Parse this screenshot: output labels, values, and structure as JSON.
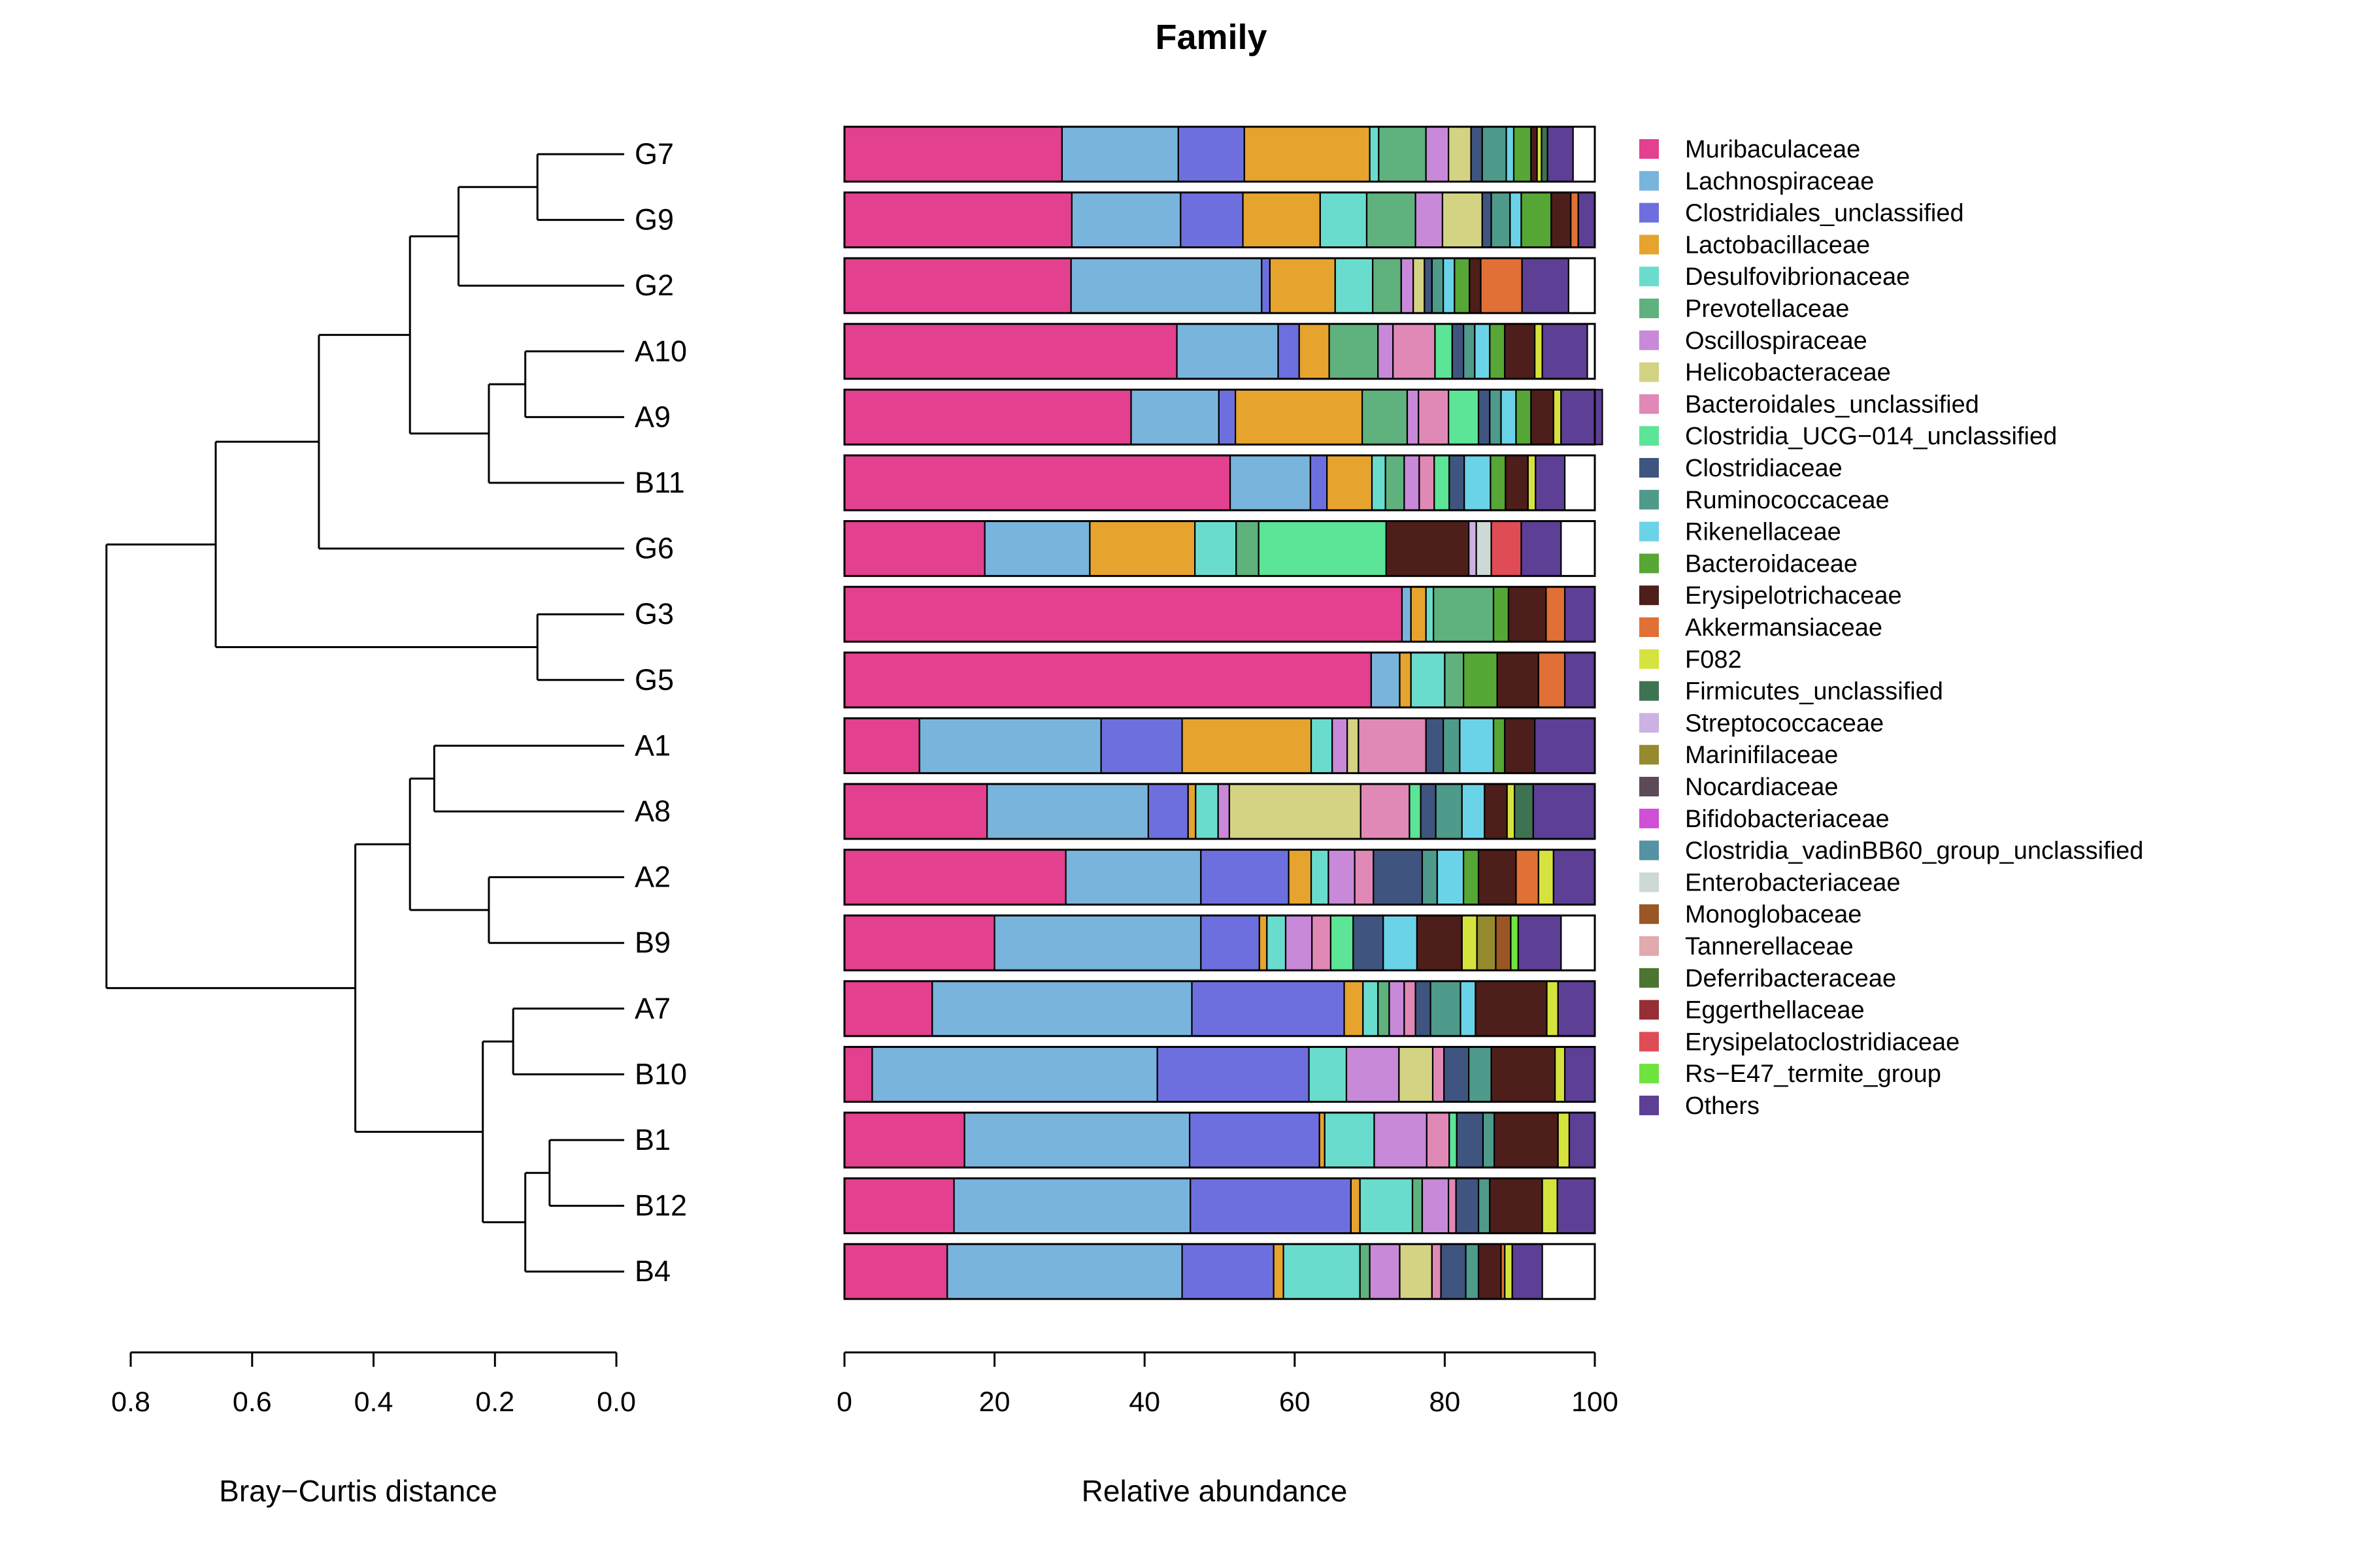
{
  "chart_data": {
    "type": "bar",
    "orientation": "horizontal",
    "stacked": true,
    "title": "Family",
    "xlabel": "Relative abundance",
    "xlim": [
      0,
      100
    ],
    "x_ticks": [
      "0",
      "20",
      "40",
      "60",
      "80",
      "100"
    ],
    "dendrogram": {
      "xlabel": "Bray−Curtis distance",
      "xlim": [
        0.8,
        0.0
      ],
      "x_ticks": [
        "0.8",
        "0.6",
        "0.4",
        "0.2",
        "0.0"
      ],
      "merges": [
        {
          "a": "G7",
          "b": "G9",
          "height": 0.13
        },
        {
          "a": "A10",
          "b": "A9",
          "height": 0.15
        },
        {
          "a": "G3",
          "b": "G5",
          "height": 0.13
        },
        {
          "a": "A1",
          "b": "A8",
          "height": 0.3
        },
        {
          "a": "A2",
          "b": "B9",
          "height": 0.21
        },
        {
          "a": "A7",
          "b": "B10",
          "height": 0.17
        },
        {
          "a": "B1",
          "b": "B12",
          "height": 0.11
        },
        {
          "a": "B1|B12",
          "b": "B4",
          "height": 0.15
        },
        {
          "a": "G7|G9",
          "b": "G2",
          "height": 0.26
        },
        {
          "a": "A10|A9",
          "b": "B11",
          "height": 0.21
        },
        {
          "a": "G7|G9|G2",
          "b": "A10|A9|B11",
          "height": 0.34
        },
        {
          "a": "G7|G9|G2|A10|A9|B11",
          "b": "G6",
          "height": 0.49
        },
        {
          "a": "G7|G9|G2|A10|A9|B11|G6",
          "b": "G3|G5",
          "height": 0.66
        },
        {
          "a": "A1|A8",
          "b": "A2|B9",
          "height": 0.34
        },
        {
          "a": "A7|B10",
          "b": "B1|B12|B4",
          "height": 0.22
        },
        {
          "a": "A1|A8|A2|B9",
          "b": "A7|B10|B1|B12|B4",
          "height": 0.43
        },
        {
          "a": "G7|G9|G2|A10|A9|B11|G6|G3|G5",
          "b": "A1|A8|A2|B9|A7|B10|B1|B12|B4",
          "height": 0.84
        }
      ]
    },
    "legend": [
      {
        "name": "Muribaculaceae",
        "color": "#E3408F"
      },
      {
        "name": "Lachnospiraceae",
        "color": "#79B4DC"
      },
      {
        "name": "Clostridiales_unclassified",
        "color": "#6E6FDE"
      },
      {
        "name": "Lactobacillaceae",
        "color": "#E6A42E"
      },
      {
        "name": "Desulfovibrionaceae",
        "color": "#6ADCCD"
      },
      {
        "name": "Prevotellaceae",
        "color": "#5FB27D"
      },
      {
        "name": "Oscillospiraceae",
        "color": "#C889D9"
      },
      {
        "name": "Helicobacteraceae",
        "color": "#D3D383"
      },
      {
        "name": "Bacteroidales_unclassified",
        "color": "#E089B6"
      },
      {
        "name": "Clostridia_UCG−014_unclassified",
        "color": "#5CE497"
      },
      {
        "name": "Clostridiaceae",
        "color": "#3F5580"
      },
      {
        "name": "Ruminococcaceae",
        "color": "#4E9A8B"
      },
      {
        "name": "Rikenellaceae",
        "color": "#6BD3E8"
      },
      {
        "name": "Bacteroidaceae",
        "color": "#56A735"
      },
      {
        "name": "Erysipelotrichaceae",
        "color": "#4E1E1A"
      },
      {
        "name": "Akkermansiaceae",
        "color": "#E07035"
      },
      {
        "name": "F082",
        "color": "#D6E33E"
      },
      {
        "name": "Firmicutes_unclassified",
        "color": "#3E7352"
      },
      {
        "name": "Streptococcaceae",
        "color": "#CDB1E2"
      },
      {
        "name": "Marinifilaceae",
        "color": "#958A2E"
      },
      {
        "name": "Nocardiaceae",
        "color": "#5C4A58"
      },
      {
        "name": "Bifidobacteriaceae",
        "color": "#CF4FD6"
      },
      {
        "name": "Clostridia_vadinBB60_group_unclassified",
        "color": "#5592A3"
      },
      {
        "name": "Enterobacteriaceae",
        "color": "#CDD9D5"
      },
      {
        "name": "Monoglobaceae",
        "color": "#9A5624"
      },
      {
        "name": "Tannerellaceae",
        "color": "#E2A9AF"
      },
      {
        "name": "Deferribacteraceae",
        "color": "#4B7530"
      },
      {
        "name": "Eggerthellaceae",
        "color": "#962E35"
      },
      {
        "name": "Erysipelatoclostridiaceae",
        "color": "#DF4C56"
      },
      {
        "name": "Rs−E47_termite_group",
        "color": "#6FE33E"
      },
      {
        "name": "Others",
        "color": "#5E3F96"
      }
    ],
    "samples": [
      {
        "name": "G7",
        "values": {
          "Muribaculaceae": 29,
          "Lachnospiraceae": 15.5,
          "Clostridiales_unclassified": 8.8,
          "Lactobacillaceae": 16.7,
          "Desulfovibrionaceae": 1.2,
          "Prevotellaceae": 6.3,
          "Oscillospiraceae": 3,
          "Helicobacteraceae": 3,
          "Rikenellaceae": 1,
          "Clostridiaceae": 1.5,
          "Ruminococcaceae": 3.2,
          "Bacteroidaceae": 2.3,
          "F082": 0.6,
          "Firmicutes_unclassified": 0.8,
          "Erysipelotrichaceae": 0.8,
          "Others": 3.4
        }
      },
      {
        "name": "G9",
        "values": {
          "Muribaculaceae": 30.3,
          "Lachnospiraceae": 14.5,
          "Clostridiales_unclassified": 8.3,
          "Lactobacillaceae": 10.3,
          "Desulfovibrionaceae": 6.2,
          "Prevotellaceae": 6.5,
          "Oscillospiraceae": 3.6,
          "Helicobacteraceae": 5.3,
          "Clostridiaceae": 1.2,
          "Ruminococcaceae": 2.5,
          "Rikenellaceae": 1.5,
          "Bacteroidaceae": 4,
          "Akkermansiaceae": 1,
          "Erysipelotrichaceae": 2.6,
          "Others": 2.2
        }
      },
      {
        "name": "G2",
        "values": {
          "Muribaculaceae": 30.2,
          "Lachnospiraceae": 25.4,
          "Clostridiales_unclassified": 1.1,
          "Lactobacillaceae": 8.7,
          "Desulfovibrionaceae": 5,
          "Prevotellaceae": 3.8,
          "Oscillospiraceae": 1.6,
          "Helicobacteraceae": 1.5,
          "Rikenellaceae": 1.5,
          "Clostridiaceae": 1,
          "Ruminococcaceae": 1.5,
          "Erysipelotrichaceae": 1.5,
          "Akkermansiaceae": 5.5,
          "Bacteroidaceae": 2,
          "Others": 6.2
        }
      },
      {
        "name": "A10",
        "values": {
          "Muribaculaceae": 44.3,
          "Lachnospiraceae": 13.5,
          "Clostridiales_unclassified": 2.8,
          "Lactobacillaceae": 4,
          "Prevotellaceae": 6.5,
          "Oscillospiraceae": 2,
          "Bacteroidales_unclassified": 5.6,
          "Clostridia_UCG−014_unclassified": 2.3,
          "Clostridiaceae": 1.5,
          "Ruminococcaceae": 1.5,
          "Rikenellaceae": 2,
          "Bacteroidaceae": 2,
          "F082": 1,
          "Erysipelotrichaceae": 4,
          "Others": 6
        }
      },
      {
        "name": "A9",
        "values": {
          "Muribaculaceae": 38.2,
          "Lachnospiraceae": 11.7,
          "Clostridiales_unclassified": 2.2,
          "Lactobacillaceae": 16.9,
          "Prevotellaceae": 6,
          "Oscillospiraceae": 1.5,
          "Bacteroidales_unclassified": 4,
          "Clostridia_UCG−014_unclassified": 4,
          "Clostridiaceae": 1.5,
          "Ruminococcaceae": 1.5,
          "Rikenellaceae": 2,
          "Bacteroidaceae": 2,
          "F082": 1,
          "Erysipelotrichaceae": 3,
          "Others": 5.5
        }
      },
      {
        "name": "B11",
        "values": {
          "Muribaculaceae": 51.4,
          "Lachnospiraceae": 10.7,
          "Clostridiales_unclassified": 2.2,
          "Lactobacillaceae": 6,
          "Desulfovibrionaceae": 1.8,
          "Prevotellaceae": 2.5,
          "Oscillospiraceae": 2,
          "Bacteroidales_unclassified": 2,
          "Clostridia_UCG−014_unclassified": 2,
          "Clostridiaceae": 2,
          "Rikenellaceae": 3.5,
          "Bacteroidaceae": 2,
          "F082": 1,
          "Erysipelotrichaceae": 3,
          "Others": 3.9
        }
      },
      {
        "name": "G6",
        "values": {
          "Muribaculaceae": 18.7,
          "Lachnospiraceae": 14,
          "Lactobacillaceae": 14,
          "Desulfovibrionaceae": 5.5,
          "Clostridia_UCG−014_unclassified": 17,
          "Prevotellaceae": 3,
          "Erysipelotrichaceae": 11,
          "Enterobacteriaceae": 2,
          "Streptococcaceae": 1,
          "Erysipelatoclostridiaceae": 4,
          "Others": 5.3
        }
      },
      {
        "name": "G3",
        "values": {
          "Muribaculaceae": 74.3,
          "Lachnospiraceae": 1.2,
          "Lactobacillaceae": 2,
          "Desulfovibrionaceae": 1,
          "Prevotellaceae": 8,
          "Bacteroidaceae": 2,
          "Akkermansiaceae": 2.5,
          "Erysipelotrichaceae": 5,
          "Others": 4
        }
      },
      {
        "name": "G5",
        "values": {
          "Muribaculaceae": 70.2,
          "Lachnospiraceae": 3.8,
          "Lactobacillaceae": 1.5,
          "Desulfovibrionaceae": 4.5,
          "Prevotellaceae": 2.5,
          "Bacteroidaceae": 4.5,
          "Akkermansiaceae": 3.5,
          "Erysipelotrichaceae": 5.5,
          "Others": 4
        }
      },
      {
        "name": "A1",
        "values": {
          "Muribaculaceae": 10,
          "Lachnospiraceae": 24.2,
          "Clostridiales_unclassified": 10.8,
          "Lactobacillaceae": 17.2,
          "Desulfovibrionaceae": 2.8,
          "Oscillospiraceae": 2,
          "Helicobacteraceae": 1.5,
          "Bacteroidales_unclassified": 9,
          "Clostridiaceae": 2.3,
          "Ruminococcaceae": 2.2,
          "Rikenellaceae": 4.5,
          "Bacteroidaceae": 1.5,
          "Erysipelotrichaceae": 4,
          "Others": 8
        }
      },
      {
        "name": "A8",
        "values": {
          "Muribaculaceae": 19,
          "Lachnospiraceae": 21.5,
          "Clostridiales_unclassified": 5.3,
          "Lactobacillaceae": 1,
          "Desulfovibrionaceae": 3,
          "Oscillospiraceae": 1.5,
          "Helicobacteraceae": 17.5,
          "Bacteroidales_unclassified": 6.5,
          "Clostridia_UCG−014_unclassified": 1.5,
          "Clostridiaceae": 2,
          "Ruminococcaceae": 3.5,
          "Rikenellaceae": 3,
          "F082": 1,
          "Firmicutes_unclassified": 2.5,
          "Erysipelotrichaceae": 3,
          "Others": 8.2
        }
      },
      {
        "name": "A2",
        "values": {
          "Muribaculaceae": 29.5,
          "Lachnospiraceae": 18,
          "Clostridiales_unclassified": 11.7,
          "Lactobacillaceae": 3,
          "Desulfovibrionaceae": 2.3,
          "Oscillospiraceae": 3.5,
          "Bacteroidales_unclassified": 2.5,
          "Clostridiaceae": 6.5,
          "Ruminococcaceae": 2,
          "Rikenellaceae": 3.5,
          "Bacteroidaceae": 2,
          "F082": 2,
          "Akkermansiaceae": 3,
          "Erysipelotrichaceae": 5,
          "Others": 5.5
        }
      },
      {
        "name": "B9",
        "values": {
          "Muribaculaceae": 20,
          "Lachnospiraceae": 27.5,
          "Clostridiales_unclassified": 7.8,
          "Lactobacillaceae": 1,
          "Desulfovibrionaceae": 2.5,
          "Oscillospiraceae": 3.5,
          "Bacteroidales_unclassified": 2.5,
          "Clostridia_UCG−014_unclassified": 3,
          "Clostridiaceae": 4,
          "Rikenellaceae": 4.5,
          "F082": 2,
          "Marinifilaceae": 2.5,
          "Monoglobaceae": 2,
          "Rs−E47_termite_group": 1,
          "Erysipelotrichaceae": 6,
          "Others": 5.7
        }
      },
      {
        "name": "A7",
        "values": {
          "Muribaculaceae": 11.7,
          "Lachnospiraceae": 34.6,
          "Clostridiales_unclassified": 20.3,
          "Lactobacillaceae": 2.5,
          "Desulfovibrionaceae": 2,
          "Prevotellaceae": 1.5,
          "Oscillospiraceae": 2,
          "Bacteroidales_unclassified": 1.5,
          "Clostridiaceae": 2,
          "Ruminococcaceae": 4,
          "Rikenellaceae": 2,
          "F082": 1.5,
          "Erysipelotrichaceae": 9.5,
          "Others": 4.9
        }
      },
      {
        "name": "B10",
        "values": {
          "Muribaculaceae": 3.7,
          "Lachnospiraceae": 38,
          "Clostridiales_unclassified": 20.2,
          "Desulfovibrionaceae": 5,
          "Oscillospiraceae": 7,
          "Helicobacteraceae": 4.5,
          "Bacteroidales_unclassified": 1.5,
          "Clostridiaceae": 3.3,
          "Ruminococcaceae": 3,
          "F082": 1.3,
          "Erysipelotrichaceae": 8.5,
          "Others": 4
        }
      },
      {
        "name": "B1",
        "values": {
          "Muribaculaceae": 16,
          "Lachnospiraceae": 30,
          "Clostridiales_unclassified": 17.3,
          "Lactobacillaceae": 0.7,
          "Desulfovibrionaceae": 6.6,
          "Oscillospiraceae": 7,
          "Bacteroidales_unclassified": 3,
          "Clostridia_UCG−014_unclassified": 1,
          "Clostridiaceae": 3.5,
          "Ruminococcaceae": 1.5,
          "F082": 1.5,
          "Erysipelotrichaceae": 8.5,
          "Others": 3.4
        }
      },
      {
        "name": "B12",
        "values": {
          "Muribaculaceae": 14.6,
          "Lachnospiraceae": 31.5,
          "Clostridiales_unclassified": 21.4,
          "Lactobacillaceae": 1.2,
          "Desulfovibrionaceae": 7,
          "Prevotellaceae": 1.3,
          "Oscillospiraceae": 3.5,
          "Bacteroidales_unclassified": 1,
          "Clostridiaceae": 3,
          "Ruminococcaceae": 1.5,
          "F082": 2,
          "Erysipelotrichaceae": 7,
          "Others": 5
        }
      },
      {
        "name": "B4",
        "values": {
          "Muribaculaceae": 13.7,
          "Lachnospiraceae": 31.3,
          "Clostridiales_unclassified": 12.2,
          "Lactobacillaceae": 1.3,
          "Desulfovibrionaceae": 10.2,
          "Prevotellaceae": 1.3,
          "Oscillospiraceae": 4,
          "Helicobacteraceae": 4.3,
          "Bacteroidales_unclassified": 1.2,
          "Clostridiaceae": 3.3,
          "Ruminococcaceae": 1.7,
          "Erysipelotrichaceae": 3,
          "Akkermansiaceae": 0.5,
          "F082": 1,
          "Others": 4
        }
      }
    ]
  }
}
